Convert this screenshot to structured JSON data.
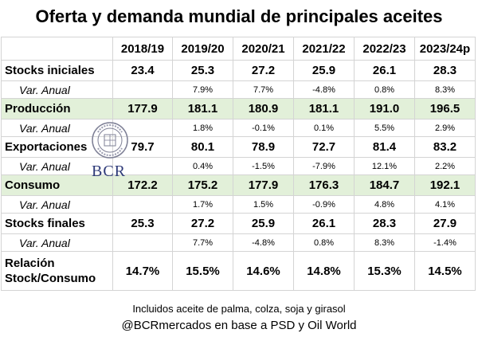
{
  "title": "Oferta y demanda mundial de principales aceites",
  "chart_data": {
    "type": "table",
    "title": "Oferta y demanda mundial de principales aceites",
    "columns": [
      "2018/19",
      "2019/20",
      "2020/21",
      "2021/22",
      "2022/23",
      "2023/24p"
    ],
    "rows": [
      {
        "label": "Stocks iniciales",
        "kind": "main",
        "values": [
          "23.4",
          "25.3",
          "27.2",
          "25.9",
          "26.1",
          "28.3"
        ]
      },
      {
        "label": "Var. Anual",
        "kind": "var",
        "values": [
          "",
          "7.9%",
          "7.7%",
          "-4.8%",
          "0.8%",
          "8.3%"
        ]
      },
      {
        "label": "Producción",
        "kind": "main",
        "highlight": true,
        "values": [
          "177.9",
          "181.1",
          "180.9",
          "181.1",
          "191.0",
          "196.5"
        ]
      },
      {
        "label": "Var. Anual",
        "kind": "var",
        "values": [
          "",
          "1.8%",
          "-0.1%",
          "0.1%",
          "5.5%",
          "2.9%"
        ]
      },
      {
        "label": "Exportaciones",
        "kind": "main",
        "values": [
          "79.7",
          "80.1",
          "78.9",
          "72.7",
          "81.4",
          "83.2"
        ]
      },
      {
        "label": "Var. Anual",
        "kind": "var",
        "values": [
          "",
          "0.4%",
          "-1.5%",
          "-7.9%",
          "12.1%",
          "2.2%"
        ]
      },
      {
        "label": "Consumo",
        "kind": "main",
        "highlight": true,
        "values": [
          "172.2",
          "175.2",
          "177.9",
          "176.3",
          "184.7",
          "192.1"
        ]
      },
      {
        "label": "Var. Anual",
        "kind": "var",
        "values": [
          "",
          "1.7%",
          "1.5%",
          "-0.9%",
          "4.8%",
          "4.1%"
        ]
      },
      {
        "label": "Stocks finales",
        "kind": "main",
        "values": [
          "25.3",
          "27.2",
          "25.9",
          "26.1",
          "28.3",
          "27.9"
        ]
      },
      {
        "label": "Var. Anual",
        "kind": "var",
        "values": [
          "",
          "7.7%",
          "-4.8%",
          "0.8%",
          "8.3%",
          "-1.4%"
        ]
      },
      {
        "label": "Relación Stock/Consumo",
        "kind": "ratio",
        "values": [
          "14.7%",
          "15.5%",
          "14.6%",
          "14.8%",
          "15.3%",
          "14.5%"
        ]
      }
    ]
  },
  "footer": {
    "note": "Incluidos aceite de palma, colza, soja y girasol",
    "source": "@BCRmercados en base a PSD y Oil World"
  },
  "watermark": {
    "text": "BCR",
    "seal_text": "BOLSA DE COMERCIO DE ROSARIO"
  },
  "colors": {
    "highlight_row": "#e2f0d9",
    "grid": "#d4d4d4",
    "logo": "#2e3a78"
  }
}
